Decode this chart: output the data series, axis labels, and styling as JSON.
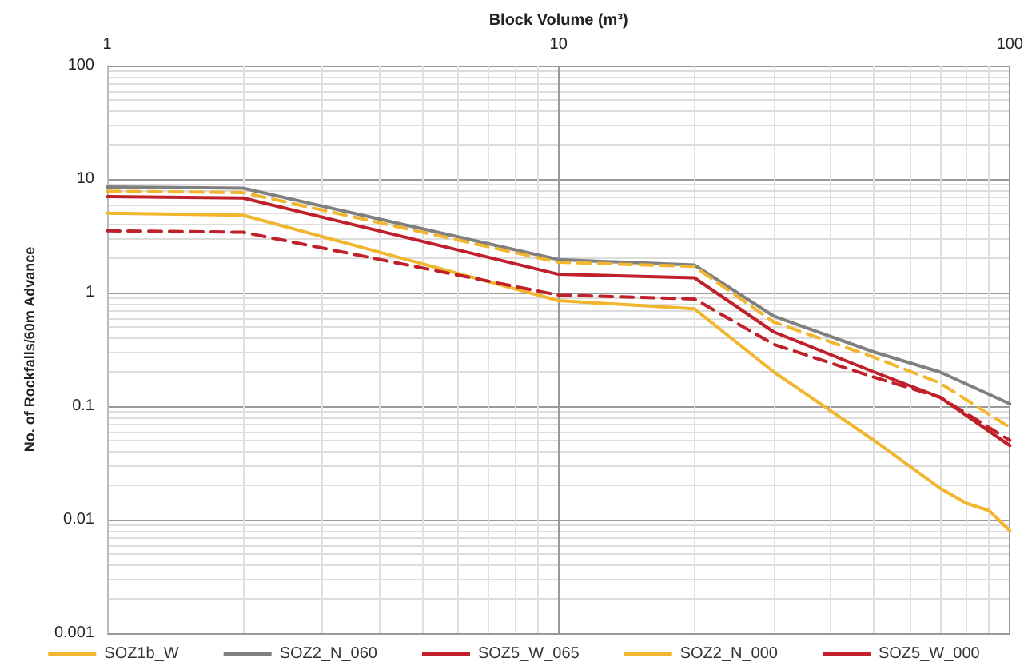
{
  "chart_data": {
    "type": "line",
    "xlabel": "Block Volume (m³)",
    "ylabel": "No. of Rockfalls/60m Advance",
    "log": "xy",
    "grid": true,
    "legend": "bottom",
    "marker": "none",
    "xlim": [
      1,
      100
    ],
    "xticks": [
      1,
      10,
      100
    ],
    "ylim": [
      0.001,
      100
    ],
    "yticks": [
      0.001,
      0.01,
      0.1,
      1,
      10,
      100
    ],
    "x": [
      1,
      2,
      10,
      20,
      30,
      50,
      70,
      100
    ],
    "series": [
      {
        "name": "SOZ1b_W",
        "color": "#f2b52e",
        "line_style": "solid",
        "x": [
          1,
          2,
          10,
          20,
          30,
          50,
          70,
          80,
          90,
          100
        ],
        "values": [
          5.0,
          4.8,
          0.85,
          0.72,
          0.2,
          0.05,
          0.019,
          0.014,
          0.012,
          0.008
        ]
      },
      {
        "name": "SOZ2_N_060",
        "color": "#808080",
        "line_style": "solid",
        "values": [
          8.5,
          8.3,
          1.95,
          1.75,
          0.62,
          0.3,
          0.2,
          0.105
        ]
      },
      {
        "name": "SOZ5_W_065",
        "color": "#c0202a",
        "line_style": "solid",
        "values": [
          7.0,
          6.8,
          1.45,
          1.35,
          0.45,
          0.2,
          0.12,
          0.045
        ]
      },
      {
        "name": "SOZ2_N_000",
        "color": "#f2b52e",
        "line_style": "dashed",
        "values": [
          7.8,
          7.6,
          1.85,
          1.7,
          0.55,
          0.27,
          0.16,
          0.065
        ]
      },
      {
        "name": "SOZ5_W_000",
        "color": "#c0202a",
        "line_style": "dashed",
        "values": [
          3.5,
          3.4,
          0.95,
          0.88,
          0.35,
          0.18,
          0.12,
          0.05
        ]
      }
    ]
  }
}
